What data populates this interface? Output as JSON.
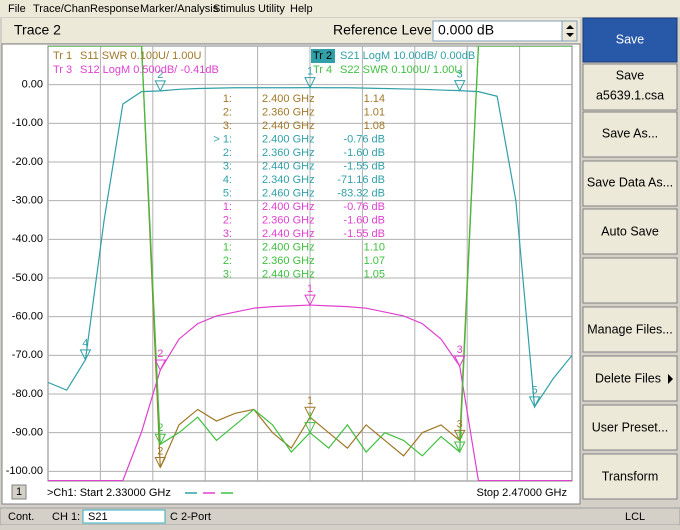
{
  "menu": [
    "File",
    "Trace/Chan",
    "Response",
    "Marker/Analysis",
    "Stimulus",
    "Utility",
    "Help"
  ],
  "toolbar": {
    "trace": "Trace 2",
    "field_label": "Reference Level",
    "field_value": "0.000 dB"
  },
  "softkeys": {
    "save": "Save",
    "save_file": "Save",
    "save_file_name": "a5639.1.csa",
    "save_as": "Save As...",
    "save_data_as": "Save Data As...",
    "auto_save": "Auto Save",
    "manage_files": "Manage Files...",
    "delete_files": "Delete Files",
    "user_preset": "User Preset...",
    "transform": "Transform"
  },
  "status": {
    "mode": "Cont.",
    "channel": "CH 1:",
    "parameter": "S21",
    "cal": "C  2-Port",
    "remote": "LCL"
  },
  "chart_data": {
    "type": "line",
    "channel": "1",
    "start_label": ">Ch1: Start 2.33000 GHz",
    "stop_label": "Stop 2.47000 GHz",
    "xlim": [
      2.33,
      2.47
    ],
    "ylim": [
      -102.5,
      10
    ],
    "yticks": [
      {
        "value": 0,
        "label": "0.00"
      },
      {
        "value": -10,
        "label": "-10.00"
      },
      {
        "value": -20,
        "label": "-20.00"
      },
      {
        "value": -30,
        "label": "-30.00"
      },
      {
        "value": -40,
        "label": "-40.00"
      },
      {
        "value": -50,
        "label": "-50.00"
      },
      {
        "value": -60,
        "label": "-60.00"
      },
      {
        "value": -70,
        "label": "-70.00"
      },
      {
        "value": -80,
        "label": "-80.00"
      },
      {
        "value": -90,
        "label": "-90.00"
      },
      {
        "value": -100,
        "label": "-100.00"
      }
    ],
    "grid": true,
    "x": [
      2.33,
      2.335,
      2.34,
      2.345,
      2.35,
      2.355,
      2.36,
      2.365,
      2.37,
      2.375,
      2.38,
      2.385,
      2.39,
      2.395,
      2.4,
      2.405,
      2.41,
      2.415,
      2.42,
      2.425,
      2.43,
      2.435,
      2.44,
      2.445,
      2.45,
      2.455,
      2.46,
      2.465,
      2.47
    ],
    "series": [
      {
        "name": "Tr 1",
        "label": "S11 SWR 0.100U/  1.00U",
        "color": "#a07828",
        "ylim": [
          0.975,
          2.1
        ],
        "values": [
          2.1,
          2.1,
          2.1,
          2.1,
          2.1,
          2.1,
          1.01,
          1.12,
          1.16,
          1.13,
          1.15,
          1.16,
          1.1,
          1.06,
          1.14,
          1.1,
          1.06,
          1.12,
          1.08,
          1.04,
          1.1,
          1.12,
          1.08,
          2.1,
          2.1,
          2.1,
          2.1,
          2.1,
          2.1
        ],
        "markers": [
          {
            "tag": "1:",
            "id": "1",
            "x": 2.4,
            "x_label": "2.400 GHz",
            "value": 1.14,
            "value_label": "1.14"
          },
          {
            "tag": "2:",
            "id": "2",
            "x": 2.36,
            "x_label": "2.360 GHz",
            "value": 1.01,
            "value_label": "1.01"
          },
          {
            "tag": "3:",
            "id": "3",
            "x": 2.44,
            "x_label": "2.440 GHz",
            "value": 1.08,
            "value_label": "1.08"
          }
        ]
      },
      {
        "name": "Tr 2",
        "label": "S21 LogM 10.00dB/  0.00dB",
        "color": "#30a0a8",
        "active": true,
        "values": [
          -77,
          -79,
          -71.16,
          -35,
          -5,
          -1.8,
          -1.6,
          -1.2,
          -1,
          -0.9,
          -0.8,
          -0.8,
          -0.8,
          -0.8,
          -0.76,
          -0.8,
          -0.8,
          -0.9,
          -1,
          -1.1,
          -1.2,
          -1.4,
          -1.55,
          -1.8,
          -3,
          -30,
          -83.32,
          -76,
          -70
        ],
        "markers": [
          {
            "tag": "> 1:",
            "id": "1",
            "x": 2.4,
            "x_label": "2.400 GHz",
            "value": -0.76,
            "value_label": "-0.76 dB"
          },
          {
            "tag": "2:",
            "id": "2",
            "x": 2.36,
            "x_label": "2.360 GHz",
            "value": -1.6,
            "value_label": "-1.60 dB"
          },
          {
            "tag": "3:",
            "id": "3",
            "x": 2.44,
            "x_label": "2.440 GHz",
            "value": -1.55,
            "value_label": "-1.55 dB"
          },
          {
            "tag": "4:",
            "id": "4",
            "x": 2.34,
            "x_label": "2.340 GHz",
            "value": -71.16,
            "value_label": "-71.16 dB"
          },
          {
            "tag": "5:",
            "id": "5",
            "x": 2.46,
            "x_label": "2.460 GHz",
            "value": -83.32,
            "value_label": "-83.32 dB"
          }
        ]
      },
      {
        "name": "Tr 3",
        "label": "S12 LogM 0.500dB/  -0.41dB",
        "color": "#e040d0",
        "ylim": [
          -3.035,
          2.59
        ],
        "values": [
          -3.03,
          -3.03,
          -3.03,
          -3.03,
          -3.03,
          -2.4,
          -1.6,
          -1.2,
          -1,
          -0.9,
          -0.85,
          -0.8,
          -0.78,
          -0.77,
          -0.76,
          -0.77,
          -0.78,
          -0.8,
          -0.85,
          -0.9,
          -1,
          -1.2,
          -1.55,
          -3.03,
          -3.03,
          -3.03,
          -3.03,
          -3.03,
          -3.03
        ],
        "markers": [
          {
            "tag": "1:",
            "id": "1",
            "x": 2.4,
            "x_label": "2.400 GHz",
            "value": -0.76,
            "value_label": "-0.76 dB"
          },
          {
            "tag": "2:",
            "id": "2",
            "x": 2.36,
            "x_label": "2.360 GHz",
            "value": -1.6,
            "value_label": "-1.60 dB"
          },
          {
            "tag": "3:",
            "id": "3",
            "x": 2.44,
            "x_label": "2.440 GHz",
            "value": -1.55,
            "value_label": "-1.55 dB"
          }
        ]
      },
      {
        "name": "Tr 4",
        "label": "S22 SWR 0.100U/  1.00U",
        "color": "#40c040",
        "ylim": [
          0.975,
          2.1
        ],
        "values": [
          2.1,
          2.1,
          2.1,
          2.1,
          2.1,
          2.1,
          1.07,
          1.1,
          1.14,
          1.08,
          1.12,
          1.16,
          1.12,
          1.05,
          1.1,
          1.06,
          1.12,
          1.05,
          1.1,
          1.08,
          1.04,
          1.09,
          1.05,
          2.1,
          2.1,
          2.1,
          2.1,
          2.1,
          2.1
        ],
        "markers": [
          {
            "tag": "1:",
            "id": "1",
            "x": 2.4,
            "x_label": "2.400 GHz",
            "value": 1.1,
            "value_label": "1.10"
          },
          {
            "tag": "2:",
            "id": "2",
            "x": 2.36,
            "x_label": "2.360 GHz",
            "value": 1.07,
            "value_label": "1.07"
          },
          {
            "tag": "3:",
            "id": "3",
            "x": 2.44,
            "x_label": "2.440 GHz",
            "value": 1.05,
            "value_label": "1.05"
          }
        ]
      }
    ]
  }
}
